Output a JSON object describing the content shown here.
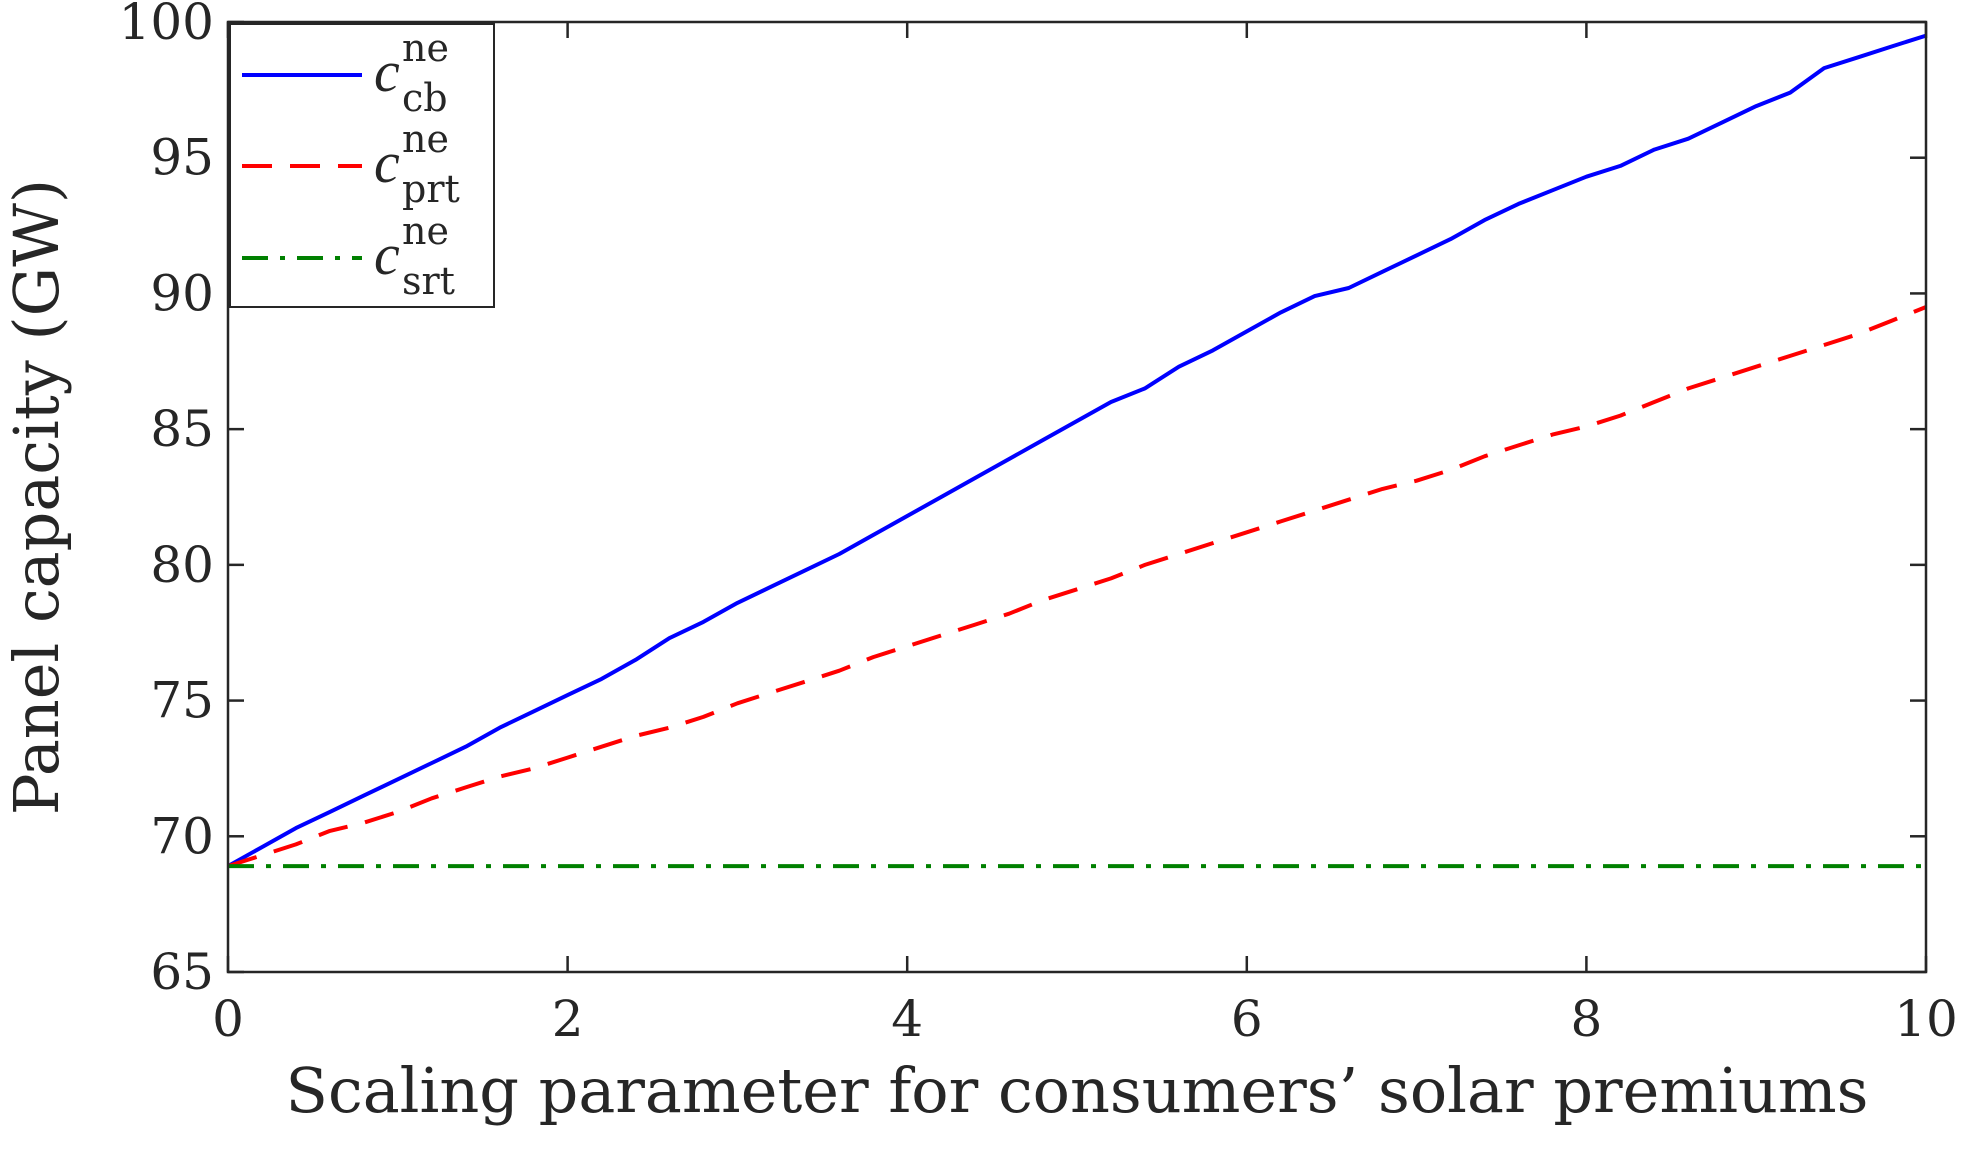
{
  "chart_data": {
    "type": "line",
    "title": "",
    "xlabel": "Scaling parameter for consumers’ solar premiums",
    "ylabel": "Panel capacity (GW)",
    "xlim": [
      0,
      10
    ],
    "ylim": [
      65,
      100
    ],
    "xticks": [
      0,
      2,
      4,
      6,
      8,
      10
    ],
    "yticks": [
      65,
      70,
      75,
      80,
      85,
      90,
      95,
      100
    ],
    "grid": false,
    "legend_position": "top-left",
    "series": [
      {
        "name": "c_cb^ne",
        "legend": {
          "main": "c",
          "sup": "ne",
          "sub": "cb"
        },
        "color": "#0000ff",
        "style": "solid",
        "x": [
          0,
          0.2,
          0.4,
          0.6,
          0.8,
          1.0,
          1.2,
          1.4,
          1.6,
          1.8,
          2.0,
          2.2,
          2.4,
          2.6,
          2.8,
          3.0,
          3.2,
          3.4,
          3.6,
          3.8,
          4.0,
          4.2,
          4.4,
          4.6,
          4.8,
          5.0,
          5.2,
          5.4,
          5.6,
          5.8,
          6.0,
          6.2,
          6.4,
          6.6,
          6.8,
          7.0,
          7.2,
          7.4,
          7.6,
          7.8,
          8.0,
          8.2,
          8.4,
          8.6,
          8.8,
          9.0,
          9.2,
          9.4,
          9.6,
          9.8,
          10.0
        ],
        "y": [
          68.9,
          69.6,
          70.3,
          70.9,
          71.5,
          72.1,
          72.7,
          73.3,
          74.0,
          74.6,
          75.2,
          75.8,
          76.5,
          77.3,
          77.9,
          78.6,
          79.2,
          79.8,
          80.4,
          81.1,
          81.8,
          82.5,
          83.2,
          83.9,
          84.6,
          85.3,
          86.0,
          86.5,
          87.3,
          87.9,
          88.6,
          89.3,
          89.9,
          90.2,
          90.8,
          91.4,
          92.0,
          92.7,
          93.3,
          93.8,
          94.3,
          94.7,
          95.3,
          95.7,
          96.3,
          96.9,
          97.4,
          98.3,
          98.7,
          99.1,
          99.5
        ]
      },
      {
        "name": "c_prt^ne",
        "legend": {
          "main": "c",
          "sup": "ne",
          "sub": "prt"
        },
        "color": "#ff0000",
        "style": "dashed",
        "x": [
          0,
          0.2,
          0.4,
          0.6,
          0.8,
          1.0,
          1.2,
          1.4,
          1.6,
          1.8,
          2.0,
          2.2,
          2.4,
          2.6,
          2.8,
          3.0,
          3.2,
          3.4,
          3.6,
          3.8,
          4.0,
          4.2,
          4.4,
          4.6,
          4.8,
          5.0,
          5.2,
          5.4,
          5.6,
          5.8,
          6.0,
          6.2,
          6.4,
          6.6,
          6.8,
          7.0,
          7.2,
          7.4,
          7.6,
          7.8,
          8.0,
          8.2,
          8.4,
          8.6,
          8.8,
          9.0,
          9.2,
          9.4,
          9.6,
          9.8,
          10.0
        ],
        "y": [
          68.9,
          69.3,
          69.7,
          70.2,
          70.5,
          70.9,
          71.4,
          71.8,
          72.2,
          72.5,
          72.9,
          73.3,
          73.7,
          74.0,
          74.4,
          74.9,
          75.3,
          75.7,
          76.1,
          76.6,
          77.0,
          77.4,
          77.8,
          78.2,
          78.7,
          79.1,
          79.5,
          80.0,
          80.4,
          80.8,
          81.2,
          81.6,
          82.0,
          82.4,
          82.8,
          83.1,
          83.5,
          84.0,
          84.4,
          84.8,
          85.1,
          85.5,
          86.0,
          86.5,
          86.9,
          87.3,
          87.7,
          88.1,
          88.5,
          89.0,
          89.5
        ]
      },
      {
        "name": "c_srt^ne",
        "legend": {
          "main": "c",
          "sup": "ne",
          "sub": "srt"
        },
        "color": "#008000",
        "style": "dashdot",
        "x": [
          0,
          10
        ],
        "y": [
          68.9,
          68.9
        ]
      }
    ]
  }
}
